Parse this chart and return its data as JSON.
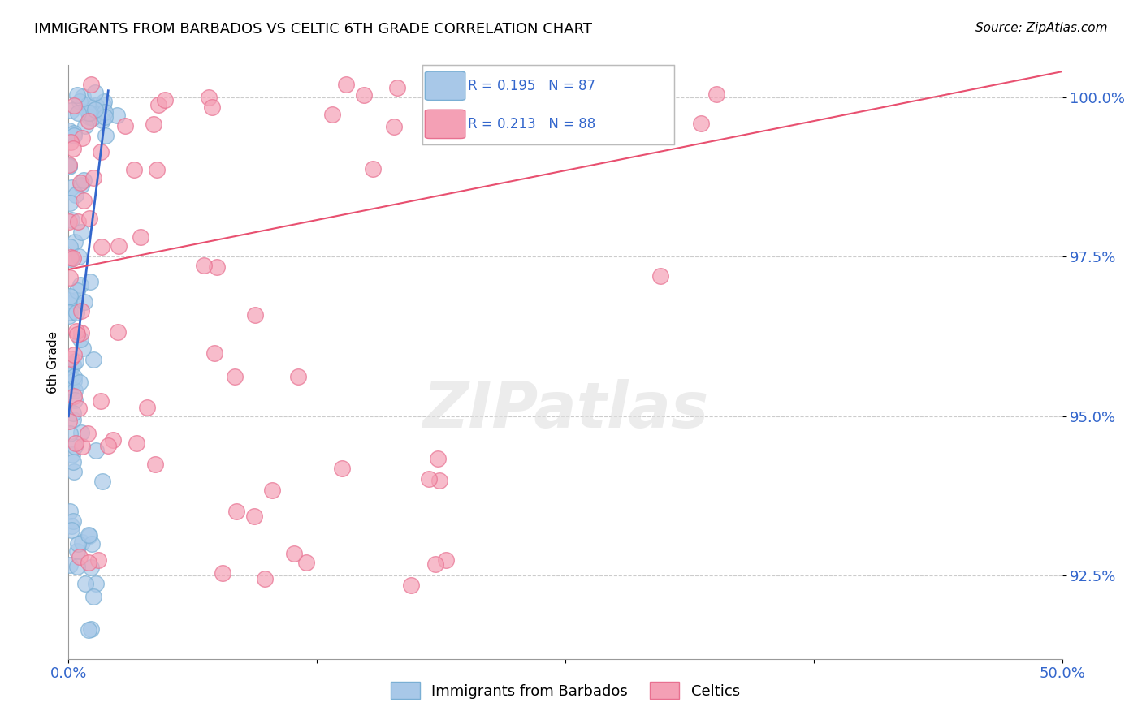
{
  "title": "IMMIGRANTS FROM BARBADOS VS CELTIC 6TH GRADE CORRELATION CHART",
  "source": "Source: ZipAtlas.com",
  "ylabel": "6th Grade",
  "r_blue": 0.195,
  "n_blue": 87,
  "r_pink": 0.213,
  "n_pink": 88,
  "legend_blue": "Immigrants from Barbados",
  "legend_pink": "Celtics",
  "blue_color": "#a8c8e8",
  "pink_color": "#f4a0b5",
  "blue_edge_color": "#7aafd4",
  "pink_edge_color": "#e87090",
  "blue_line_color": "#3366cc",
  "pink_line_color": "#e85070",
  "xmin": 0.0,
  "xmax": 50.0,
  "ymin": 91.2,
  "ymax": 100.5,
  "yticks": [
    92.5,
    95.0,
    97.5,
    100.0
  ],
  "watermark": "ZIPatlas",
  "background_color": "#ffffff",
  "grid_color": "#cccccc",
  "tick_color": "#3366cc",
  "title_color": "#000000",
  "label_color": "#000000"
}
